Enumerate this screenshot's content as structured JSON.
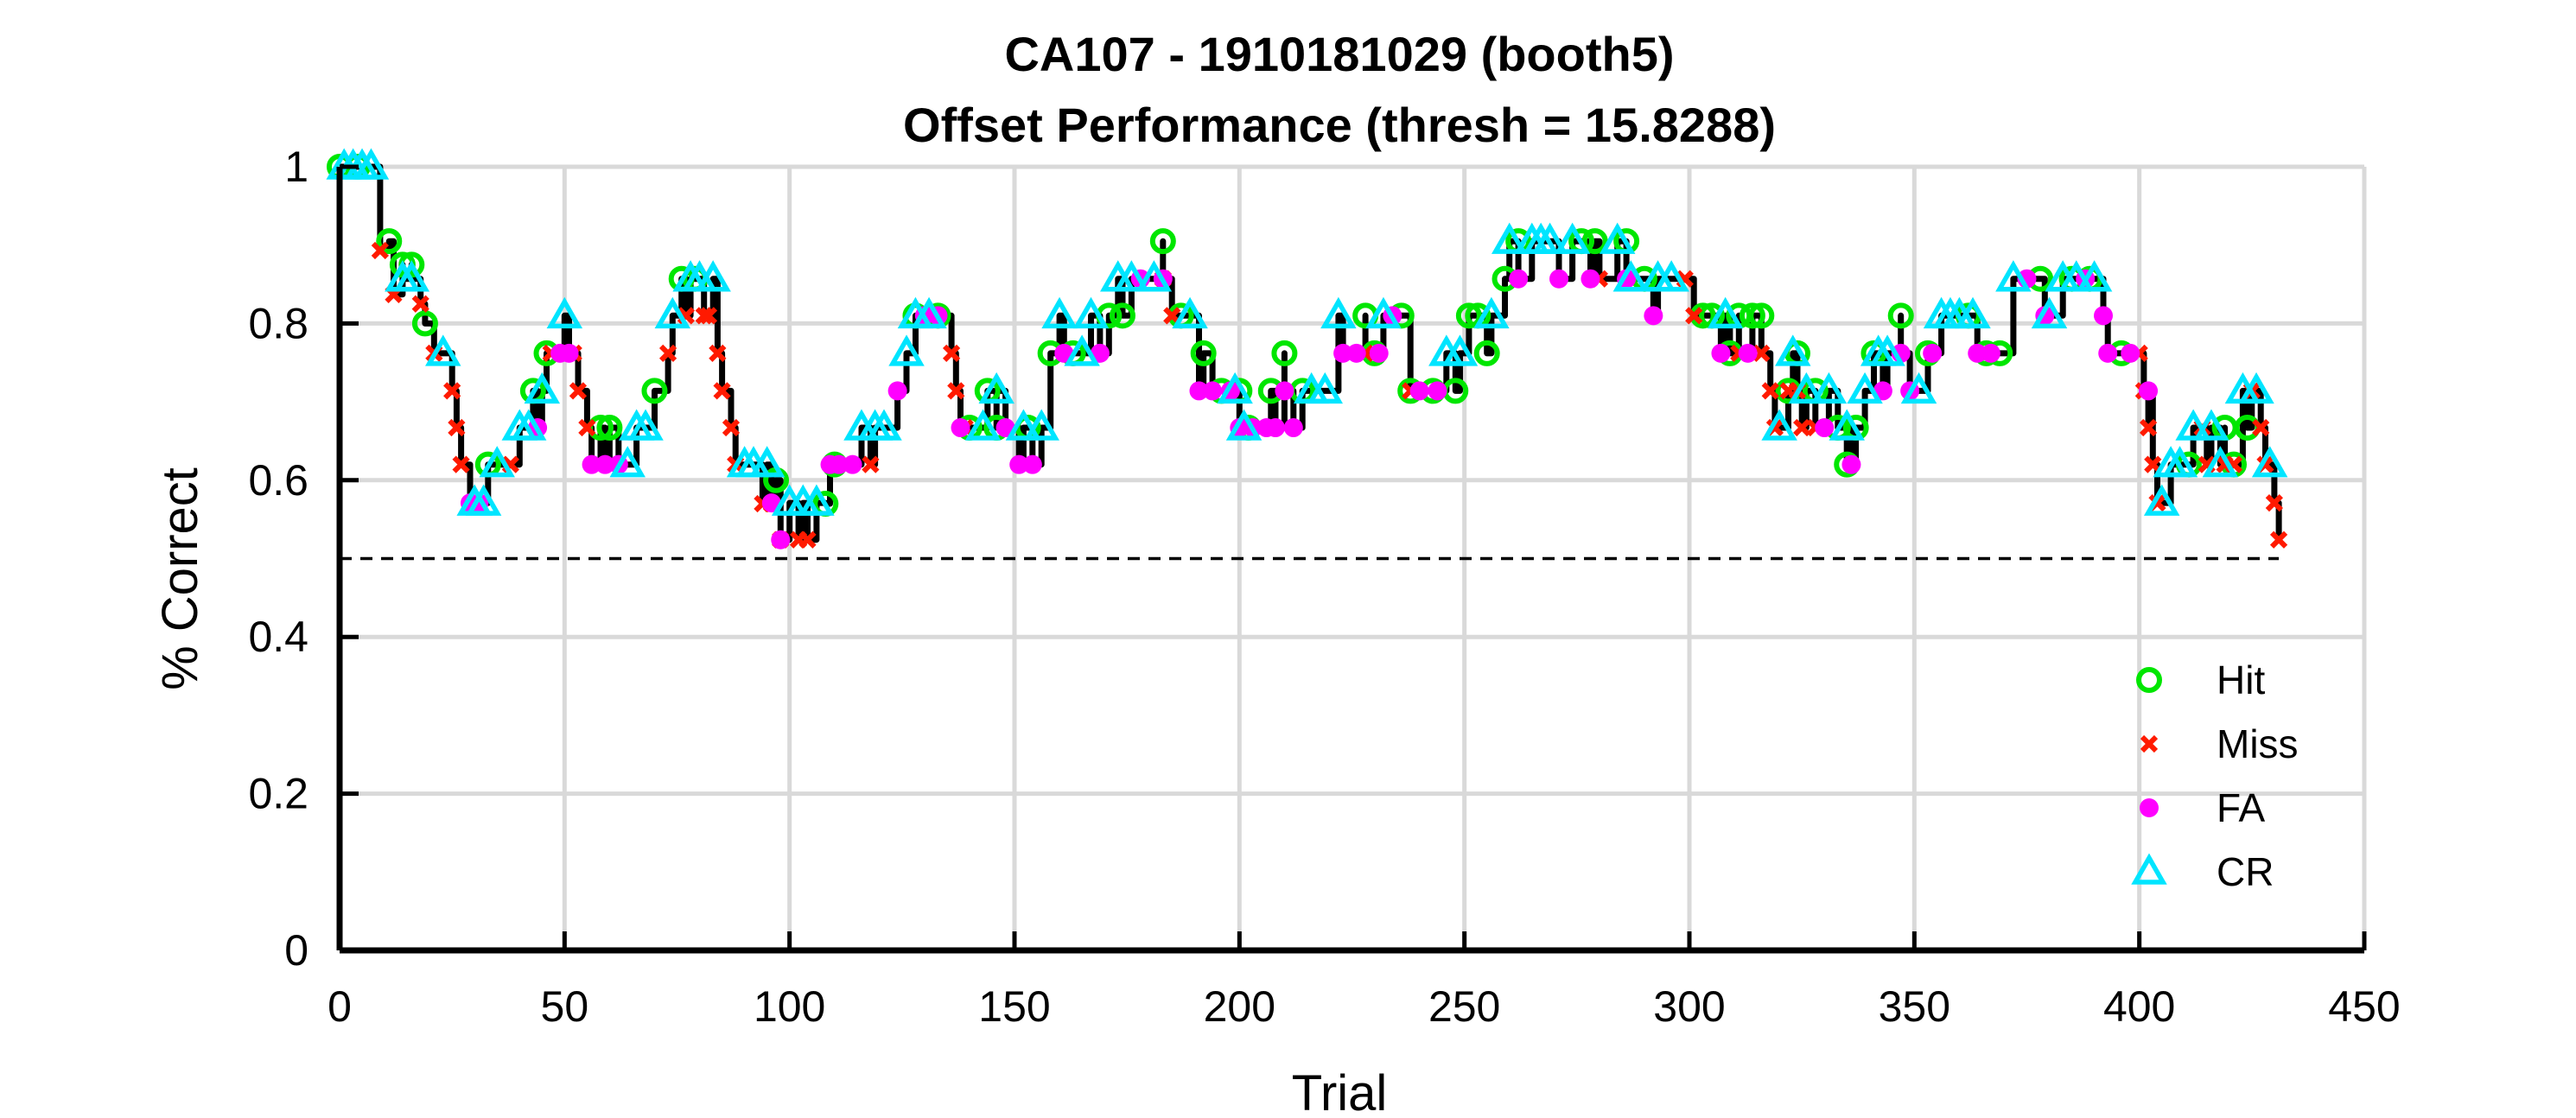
{
  "chart_data": {
    "type": "line",
    "title": "CA107 - 1910181029 (booth5)",
    "subtitle": "Offset Performance (thresh = 15.8288)",
    "xlabel": "Trial",
    "ylabel": "% Correct",
    "xlim": [
      0,
      450
    ],
    "ylim": [
      0,
      1
    ],
    "xticks": [
      0,
      50,
      100,
      150,
      200,
      250,
      300,
      350,
      400,
      450
    ],
    "yticks": [
      0,
      0.2,
      0.4,
      0.6,
      0.8,
      1
    ],
    "xtick_labels": [
      "0",
      "50",
      "100",
      "150",
      "200",
      "250",
      "300",
      "350",
      "400",
      "450"
    ],
    "ytick_labels": [
      "0",
      "0.2",
      "0.4",
      "0.6",
      "0.8",
      "1"
    ],
    "grid": true,
    "legend_position": "bottom-right",
    "chance_line": {
      "y": 0.5,
      "x_range": [
        0,
        431
      ],
      "style": "dashed",
      "color": "#000000"
    },
    "line_color": "#000000",
    "series": [
      {
        "name": "Hit",
        "color": "#00e600",
        "marker": "circle-open",
        "points": [
          [
            0,
            1.0
          ],
          [
            4,
            1.0
          ],
          [
            11,
            0.905
          ],
          [
            14,
            0.875
          ],
          [
            16,
            0.875
          ],
          [
            19,
            0.8
          ],
          [
            33,
            0.62
          ],
          [
            43,
            0.714
          ],
          [
            46,
            0.762
          ],
          [
            58,
            0.667
          ],
          [
            60,
            0.667
          ],
          [
            70,
            0.714
          ],
          [
            76,
            0.857
          ],
          [
            79,
            0.857
          ],
          [
            97,
            0.6
          ],
          [
            108,
            0.57
          ],
          [
            110,
            0.62
          ],
          [
            128,
            0.81
          ],
          [
            133,
            0.81
          ],
          [
            140,
            0.667
          ],
          [
            144,
            0.714
          ],
          [
            146,
            0.667
          ],
          [
            153,
            0.667
          ],
          [
            158,
            0.762
          ],
          [
            163,
            0.762
          ],
          [
            171,
            0.81
          ],
          [
            174,
            0.81
          ],
          [
            183,
            0.905
          ],
          [
            187,
            0.81
          ],
          [
            192,
            0.762
          ],
          [
            196,
            0.714
          ],
          [
            200,
            0.714
          ],
          [
            202,
            0.667
          ],
          [
            207,
            0.714
          ],
          [
            210,
            0.762
          ],
          [
            214,
            0.714
          ],
          [
            228,
            0.81
          ],
          [
            230,
            0.762
          ],
          [
            236,
            0.81
          ],
          [
            238,
            0.714
          ],
          [
            243,
            0.714
          ],
          [
            248,
            0.714
          ],
          [
            251,
            0.81
          ],
          [
            253,
            0.81
          ],
          [
            255,
            0.762
          ],
          [
            259,
            0.857
          ],
          [
            262,
            0.905
          ],
          [
            276,
            0.905
          ],
          [
            279,
            0.905
          ],
          [
            286,
            0.905
          ],
          [
            290,
            0.857
          ],
          [
            303,
            0.81
          ],
          [
            305,
            0.81
          ],
          [
            309,
            0.762
          ],
          [
            311,
            0.81
          ],
          [
            314,
            0.81
          ],
          [
            316,
            0.81
          ],
          [
            322,
            0.714
          ],
          [
            324,
            0.762
          ],
          [
            328,
            0.714
          ],
          [
            333,
            0.667
          ],
          [
            335,
            0.62
          ],
          [
            337,
            0.667
          ],
          [
            341,
            0.762
          ],
          [
            347,
            0.81
          ],
          [
            353,
            0.762
          ],
          [
            362,
            0.81
          ],
          [
            366,
            0.762
          ],
          [
            369,
            0.762
          ],
          [
            378,
            0.857
          ],
          [
            385,
            0.857
          ],
          [
            389,
            0.857
          ],
          [
            396,
            0.762
          ],
          [
            411,
            0.62
          ],
          [
            419,
            0.667
          ],
          [
            421,
            0.62
          ],
          [
            424,
            0.667
          ]
        ]
      },
      {
        "name": "Miss",
        "color": "#ff1a00",
        "marker": "x",
        "points": [
          [
            9,
            0.893
          ],
          [
            12,
            0.837
          ],
          [
            18,
            0.825
          ],
          [
            21,
            0.762
          ],
          [
            25,
            0.714
          ],
          [
            26,
            0.667
          ],
          [
            27,
            0.62
          ],
          [
            38,
            0.62
          ],
          [
            47,
            0.762
          ],
          [
            52,
            0.762
          ],
          [
            53,
            0.714
          ],
          [
            55,
            0.667
          ],
          [
            73,
            0.762
          ],
          [
            77,
            0.81
          ],
          [
            81,
            0.81
          ],
          [
            82,
            0.81
          ],
          [
            84,
            0.762
          ],
          [
            85,
            0.714
          ],
          [
            87,
            0.667
          ],
          [
            88,
            0.62
          ],
          [
            94,
            0.57
          ],
          [
            96,
            0.57
          ],
          [
            98,
            0.524
          ],
          [
            102,
            0.524
          ],
          [
            104,
            0.524
          ],
          [
            118,
            0.62
          ],
          [
            136,
            0.762
          ],
          [
            137,
            0.714
          ],
          [
            139,
            0.667
          ],
          [
            183,
            0.857
          ],
          [
            185,
            0.81
          ],
          [
            228,
            0.762
          ],
          [
            238,
            0.714
          ],
          [
            280,
            0.857
          ],
          [
            299,
            0.857
          ],
          [
            301,
            0.81
          ],
          [
            311,
            0.762
          ],
          [
            316,
            0.762
          ],
          [
            318,
            0.714
          ],
          [
            319,
            0.667
          ],
          [
            322,
            0.714
          ],
          [
            324,
            0.714
          ],
          [
            325,
            0.667
          ],
          [
            328,
            0.667
          ],
          [
            400,
            0.762
          ],
          [
            401,
            0.714
          ],
          [
            402,
            0.667
          ],
          [
            403,
            0.62
          ],
          [
            404,
            0.571
          ],
          [
            414,
            0.667
          ],
          [
            415,
            0.62
          ],
          [
            419,
            0.62
          ],
          [
            421,
            0.62
          ],
          [
            425,
            0.714
          ],
          [
            427,
            0.667
          ],
          [
            428,
            0.62
          ],
          [
            430,
            0.571
          ],
          [
            431,
            0.524
          ]
        ]
      },
      {
        "name": "FA",
        "color": "#ff00ff",
        "marker": "circle-filled",
        "points": [
          [
            29,
            0.571
          ],
          [
            31,
            0.571
          ],
          [
            44,
            0.667
          ],
          [
            49,
            0.762
          ],
          [
            51,
            0.762
          ],
          [
            56,
            0.62
          ],
          [
            59,
            0.62
          ],
          [
            62,
            0.62
          ],
          [
            96,
            0.571
          ],
          [
            98,
            0.524
          ],
          [
            109,
            0.62
          ],
          [
            111,
            0.62
          ],
          [
            114,
            0.62
          ],
          [
            124,
            0.714
          ],
          [
            130,
            0.81
          ],
          [
            133,
            0.81
          ],
          [
            138,
            0.667
          ],
          [
            148,
            0.667
          ],
          [
            151,
            0.62
          ],
          [
            154,
            0.62
          ],
          [
            161,
            0.762
          ],
          [
            169,
            0.762
          ],
          [
            178,
            0.857
          ],
          [
            183,
            0.857
          ],
          [
            191,
            0.714
          ],
          [
            194,
            0.714
          ],
          [
            198,
            0.714
          ],
          [
            200,
            0.667
          ],
          [
            203,
            0.667
          ],
          [
            206,
            0.667
          ],
          [
            208,
            0.667
          ],
          [
            210,
            0.714
          ],
          [
            212,
            0.667
          ],
          [
            223,
            0.762
          ],
          [
            226,
            0.762
          ],
          [
            231,
            0.762
          ],
          [
            234,
            0.81
          ],
          [
            240,
            0.714
          ],
          [
            244,
            0.714
          ],
          [
            262,
            0.857
          ],
          [
            271,
            0.857
          ],
          [
            278,
            0.857
          ],
          [
            286,
            0.857
          ],
          [
            292,
            0.81
          ],
          [
            307,
            0.762
          ],
          [
            313,
            0.762
          ],
          [
            330,
            0.667
          ],
          [
            336,
            0.62
          ],
          [
            343,
            0.714
          ],
          [
            347,
            0.762
          ],
          [
            349,
            0.714
          ],
          [
            354,
            0.762
          ],
          [
            364,
            0.762
          ],
          [
            367,
            0.762
          ],
          [
            375,
            0.857
          ],
          [
            379,
            0.81
          ],
          [
            388,
            0.857
          ],
          [
            392,
            0.81
          ],
          [
            393,
            0.762
          ],
          [
            398,
            0.762
          ],
          [
            402,
            0.714
          ]
        ]
      },
      {
        "name": "CR",
        "color": "#00e5ff",
        "marker": "triangle-open",
        "points": [
          [
            1,
            1.0
          ],
          [
            3,
            1.0
          ],
          [
            5,
            1.0
          ],
          [
            7,
            1.0
          ],
          [
            14,
            0.857
          ],
          [
            16,
            0.857
          ],
          [
            23,
            0.762
          ],
          [
            30,
            0.571
          ],
          [
            32,
            0.571
          ],
          [
            35,
            0.62
          ],
          [
            40,
            0.667
          ],
          [
            42,
            0.667
          ],
          [
            45,
            0.714
          ],
          [
            50,
            0.81
          ],
          [
            64,
            0.62
          ],
          [
            66,
            0.667
          ],
          [
            68,
            0.667
          ],
          [
            74,
            0.81
          ],
          [
            78,
            0.857
          ],
          [
            80,
            0.857
          ],
          [
            83,
            0.857
          ],
          [
            90,
            0.62
          ],
          [
            92,
            0.62
          ],
          [
            95,
            0.62
          ],
          [
            100,
            0.571
          ],
          [
            103,
            0.571
          ],
          [
            106,
            0.571
          ],
          [
            116,
            0.667
          ],
          [
            119,
            0.667
          ],
          [
            121,
            0.667
          ],
          [
            126,
            0.762
          ],
          [
            128,
            0.81
          ],
          [
            131,
            0.81
          ],
          [
            143,
            0.667
          ],
          [
            146,
            0.714
          ],
          [
            152,
            0.667
          ],
          [
            156,
            0.667
          ],
          [
            160,
            0.81
          ],
          [
            165,
            0.762
          ],
          [
            167,
            0.81
          ],
          [
            173,
            0.857
          ],
          [
            176,
            0.857
          ],
          [
            181,
            0.857
          ],
          [
            189,
            0.81
          ],
          [
            199,
            0.714
          ],
          [
            201,
            0.667
          ],
          [
            216,
            0.714
          ],
          [
            219,
            0.714
          ],
          [
            222,
            0.81
          ],
          [
            232,
            0.81
          ],
          [
            246,
            0.762
          ],
          [
            249,
            0.762
          ],
          [
            256,
            0.81
          ],
          [
            260,
            0.905
          ],
          [
            265,
            0.905
          ],
          [
            267,
            0.905
          ],
          [
            269,
            0.905
          ],
          [
            274,
            0.905
          ],
          [
            284,
            0.905
          ],
          [
            287,
            0.857
          ],
          [
            293,
            0.857
          ],
          [
            296,
            0.857
          ],
          [
            308,
            0.81
          ],
          [
            320,
            0.667
          ],
          [
            323,
            0.762
          ],
          [
            326,
            0.714
          ],
          [
            331,
            0.714
          ],
          [
            335,
            0.667
          ],
          [
            339,
            0.714
          ],
          [
            342,
            0.762
          ],
          [
            344,
            0.762
          ],
          [
            351,
            0.714
          ],
          [
            356,
            0.81
          ],
          [
            358,
            0.81
          ],
          [
            360,
            0.81
          ],
          [
            363,
            0.81
          ],
          [
            372,
            0.857
          ],
          [
            380,
            0.81
          ],
          [
            383,
            0.857
          ],
          [
            386,
            0.857
          ],
          [
            390,
            0.857
          ],
          [
            405,
            0.571
          ],
          [
            407,
            0.62
          ],
          [
            409,
            0.62
          ],
          [
            412,
            0.667
          ],
          [
            416,
            0.667
          ],
          [
            418,
            0.62
          ],
          [
            423,
            0.714
          ],
          [
            426,
            0.714
          ],
          [
            429,
            0.62
          ]
        ]
      }
    ]
  }
}
